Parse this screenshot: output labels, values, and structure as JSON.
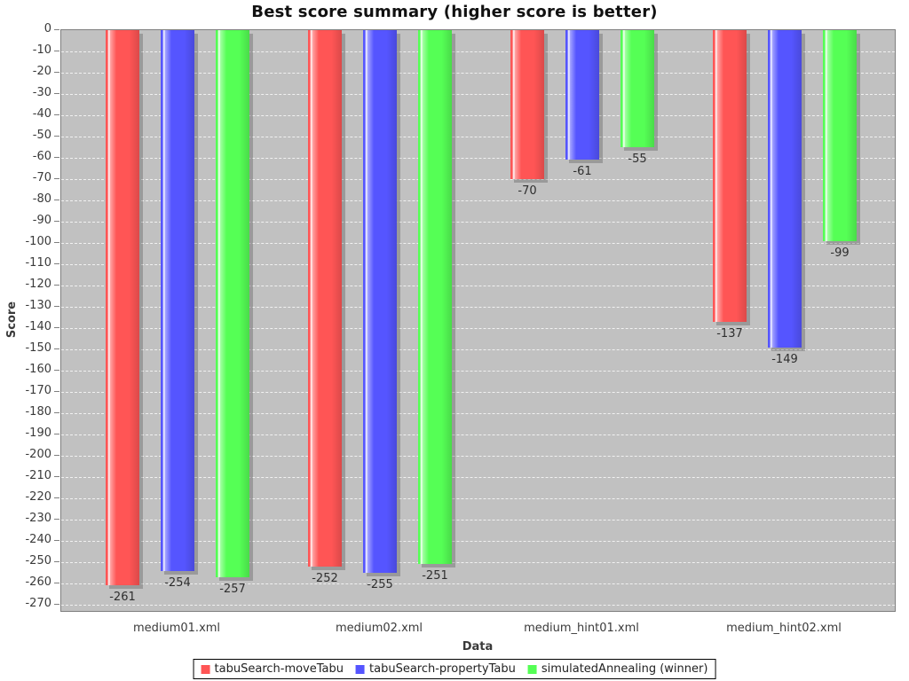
{
  "chart_data": {
    "type": "bar",
    "title": "Best score summary (higher score is better)",
    "xlabel": "Data",
    "ylabel": "Score",
    "ylim": [
      -270,
      0
    ],
    "y_tick_step": 10,
    "y_ticks": [
      0,
      -10,
      -20,
      -30,
      -40,
      -50,
      -60,
      -70,
      -80,
      -90,
      -100,
      -110,
      -120,
      -130,
      -140,
      -150,
      -160,
      -170,
      -180,
      -190,
      -200,
      -210,
      -220,
      -230,
      -240,
      -250,
      -260,
      -270
    ],
    "grid": "horizontal-white-dashed",
    "plot_background": "#c1c1c1",
    "legend_position": "bottom",
    "categories": [
      "medium01.xml",
      "medium02.xml",
      "medium_hint01.xml",
      "medium_hint02.xml"
    ],
    "series": [
      {
        "name": "tabuSearch-moveTabu",
        "color": "#ff5555",
        "values": [
          -261,
          -252,
          -70,
          -137
        ]
      },
      {
        "name": "tabuSearch-propertyTabu",
        "color": "#5555ff",
        "values": [
          -254,
          -255,
          -61,
          -149
        ]
      },
      {
        "name": "simulatedAnnealing (winner)",
        "color": "#55ff55",
        "values": [
          -257,
          -251,
          -55,
          -99
        ]
      }
    ]
  }
}
